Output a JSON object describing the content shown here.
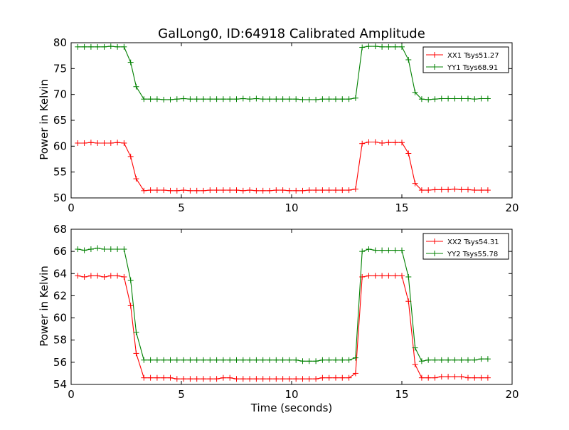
{
  "chart_data": [
    {
      "type": "line",
      "title": "GalLong0, ID:64918 Calibrated Amplitude",
      "xlabel": "",
      "ylabel": "Power in Kelvin",
      "xlim": [
        0,
        20
      ],
      "ylim": [
        50,
        80
      ],
      "xticks": [
        "0",
        "5",
        "10",
        "15",
        "20"
      ],
      "yticks": [
        "50",
        "55",
        "60",
        "65",
        "70",
        "75",
        "80"
      ],
      "legend_position": "top-right",
      "x": [
        0.3,
        0.6,
        0.9,
        1.2,
        1.5,
        1.8,
        2.1,
        2.4,
        2.7,
        2.95,
        3.3,
        3.6,
        3.9,
        4.2,
        4.5,
        4.8,
        5.1,
        5.4,
        5.7,
        6.0,
        6.3,
        6.6,
        6.9,
        7.2,
        7.5,
        7.8,
        8.1,
        8.4,
        8.7,
        9.0,
        9.3,
        9.6,
        9.9,
        10.2,
        10.5,
        10.8,
        11.1,
        11.4,
        11.7,
        12.0,
        12.3,
        12.6,
        12.9,
        13.2,
        13.5,
        13.8,
        14.1,
        14.4,
        14.7,
        15.0,
        15.3,
        15.6,
        15.9,
        16.2,
        16.5,
        16.8,
        17.1,
        17.4,
        17.7,
        18.0,
        18.3,
        18.6,
        18.9
      ],
      "series": [
        {
          "name": "XX1 Tsys51.27",
          "color": "#ff0000",
          "values": [
            60.6,
            60.6,
            60.7,
            60.6,
            60.6,
            60.6,
            60.7,
            60.6,
            58.0,
            53.7,
            51.4,
            51.5,
            51.5,
            51.5,
            51.4,
            51.4,
            51.5,
            51.4,
            51.4,
            51.4,
            51.5,
            51.5,
            51.5,
            51.5,
            51.5,
            51.4,
            51.5,
            51.4,
            51.4,
            51.4,
            51.5,
            51.5,
            51.4,
            51.4,
            51.4,
            51.5,
            51.5,
            51.5,
            51.5,
            51.5,
            51.5,
            51.5,
            51.7,
            60.5,
            60.8,
            60.8,
            60.6,
            60.7,
            60.7,
            60.7,
            58.6,
            52.8,
            51.5,
            51.5,
            51.6,
            51.6,
            51.6,
            51.7,
            51.6,
            51.6,
            51.5,
            51.5,
            51.5
          ]
        },
        {
          "name": "YY1 Tsys68.91",
          "color": "#008000",
          "values": [
            79.2,
            79.2,
            79.2,
            79.2,
            79.2,
            79.3,
            79.2,
            79.2,
            76.2,
            71.5,
            69.1,
            69.1,
            69.1,
            69.0,
            69.0,
            69.1,
            69.2,
            69.1,
            69.1,
            69.1,
            69.1,
            69.1,
            69.1,
            69.1,
            69.1,
            69.2,
            69.1,
            69.2,
            69.1,
            69.1,
            69.1,
            69.1,
            69.1,
            69.1,
            69.0,
            69.0,
            69.0,
            69.1,
            69.1,
            69.1,
            69.1,
            69.1,
            69.3,
            79.1,
            79.3,
            79.3,
            79.2,
            79.2,
            79.2,
            79.2,
            76.7,
            70.4,
            69.1,
            69.0,
            69.1,
            69.2,
            69.2,
            69.2,
            69.2,
            69.2,
            69.1,
            69.2,
            69.2
          ]
        }
      ]
    },
    {
      "type": "line",
      "title": "",
      "xlabel": "Time (seconds)",
      "ylabel": "Power in Kelvin",
      "xlim": [
        0,
        20
      ],
      "ylim": [
        54,
        68
      ],
      "xticks": [
        "0",
        "5",
        "10",
        "15",
        "20"
      ],
      "yticks": [
        "54",
        "56",
        "58",
        "60",
        "62",
        "64",
        "66",
        "68"
      ],
      "legend_position": "top-right",
      "x": [
        0.3,
        0.6,
        0.9,
        1.2,
        1.5,
        1.8,
        2.1,
        2.4,
        2.7,
        2.95,
        3.3,
        3.6,
        3.9,
        4.2,
        4.5,
        4.8,
        5.1,
        5.4,
        5.7,
        6.0,
        6.3,
        6.6,
        6.9,
        7.2,
        7.5,
        7.8,
        8.1,
        8.4,
        8.7,
        9.0,
        9.3,
        9.6,
        9.9,
        10.2,
        10.5,
        10.8,
        11.1,
        11.4,
        11.7,
        12.0,
        12.3,
        12.6,
        12.9,
        13.2,
        13.5,
        13.8,
        14.1,
        14.4,
        14.7,
        15.0,
        15.3,
        15.6,
        15.9,
        16.2,
        16.5,
        16.8,
        17.1,
        17.4,
        17.7,
        18.0,
        18.3,
        18.6,
        18.9
      ],
      "series": [
        {
          "name": "XX2 Tsys54.31",
          "color": "#ff0000",
          "values": [
            63.8,
            63.7,
            63.8,
            63.8,
            63.7,
            63.8,
            63.8,
            63.7,
            61.1,
            56.8,
            54.6,
            54.6,
            54.6,
            54.6,
            54.6,
            54.5,
            54.5,
            54.5,
            54.5,
            54.5,
            54.5,
            54.5,
            54.6,
            54.6,
            54.5,
            54.5,
            54.5,
            54.5,
            54.5,
            54.5,
            54.5,
            54.5,
            54.5,
            54.5,
            54.5,
            54.5,
            54.5,
            54.6,
            54.6,
            54.6,
            54.6,
            54.6,
            55.0,
            63.7,
            63.8,
            63.8,
            63.8,
            63.8,
            63.8,
            63.8,
            61.5,
            55.8,
            54.6,
            54.6,
            54.6,
            54.7,
            54.7,
            54.7,
            54.7,
            54.6,
            54.6,
            54.6,
            54.6
          ]
        },
        {
          "name": "YY2 Tsys55.78",
          "color": "#008000",
          "values": [
            66.2,
            66.1,
            66.2,
            66.3,
            66.2,
            66.2,
            66.2,
            66.2,
            63.4,
            58.7,
            56.2,
            56.2,
            56.2,
            56.2,
            56.2,
            56.2,
            56.2,
            56.2,
            56.2,
            56.2,
            56.2,
            56.2,
            56.2,
            56.2,
            56.2,
            56.2,
            56.2,
            56.2,
            56.2,
            56.2,
            56.2,
            56.2,
            56.2,
            56.2,
            56.1,
            56.1,
            56.1,
            56.2,
            56.2,
            56.2,
            56.2,
            56.2,
            56.4,
            66.0,
            66.2,
            66.1,
            66.1,
            66.1,
            66.1,
            66.1,
            63.7,
            57.3,
            56.1,
            56.2,
            56.2,
            56.2,
            56.2,
            56.2,
            56.2,
            56.2,
            56.2,
            56.3,
            56.3
          ]
        }
      ]
    }
  ]
}
